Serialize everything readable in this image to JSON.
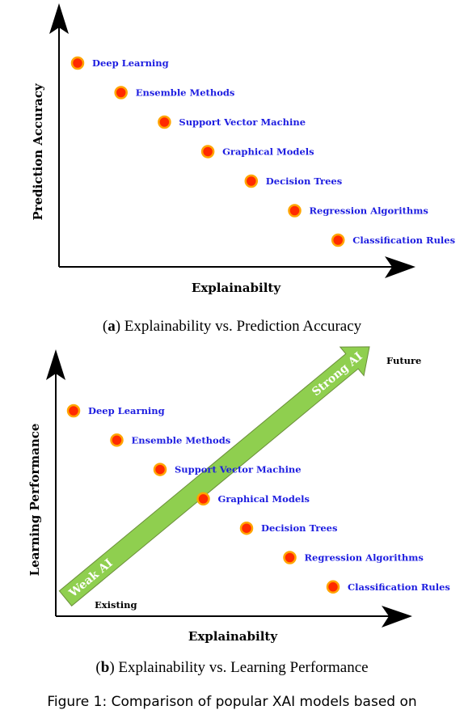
{
  "chart_data": [
    {
      "type": "scatter",
      "title": "",
      "xlabel": "Explainabilty",
      "ylabel": "Prediction Accuracy",
      "points": [
        {
          "label": "Deep Learning",
          "x": 1,
          "y": 7
        },
        {
          "label": "Ensemble Methods",
          "x": 2,
          "y": 6
        },
        {
          "label": "Support Vector Machine",
          "x": 3,
          "y": 5
        },
        {
          "label": "Graphical Models",
          "x": 4,
          "y": 4
        },
        {
          "label": "Decision Trees",
          "x": 5,
          "y": 3
        },
        {
          "label": "Regression Algorithms",
          "x": 6,
          "y": 2
        },
        {
          "label": "Classification Rules",
          "x": 7,
          "y": 1
        }
      ]
    },
    {
      "type": "scatter",
      "title": "",
      "xlabel": "Explainabilty",
      "ylabel": "Learning Performance",
      "points": [
        {
          "label": "Deep Learning",
          "x": 1,
          "y": 7
        },
        {
          "label": "Ensemble Methods",
          "x": 2,
          "y": 6
        },
        {
          "label": "Support Vector Machine",
          "x": 3,
          "y": 5
        },
        {
          "label": "Graphical Models",
          "x": 4,
          "y": 4
        },
        {
          "label": "Decision Trees",
          "x": 5,
          "y": 3
        },
        {
          "label": "Regression Algorithms",
          "x": 6,
          "y": 2
        },
        {
          "label": "Classification Rules",
          "x": 7,
          "y": 1
        }
      ],
      "trend_arrow": {
        "start_label": "Weak AI",
        "end_label": "Strong AI",
        "origin_text": "Existing",
        "end_text": "Future"
      }
    }
  ],
  "captions": {
    "a_letter": "a",
    "a_text": " Explainability vs. Prediction Accuracy",
    "b_letter": "b",
    "b_text": " Explainability vs. Learning Performance"
  },
  "footer": "Figure 1: Comparison of popular XAI models based on",
  "colors": {
    "point_fill": "#ff2a00",
    "point_outline": "#ffa500",
    "label_text": "#1d1de0",
    "trend_arrow": "#8fcf4f"
  }
}
